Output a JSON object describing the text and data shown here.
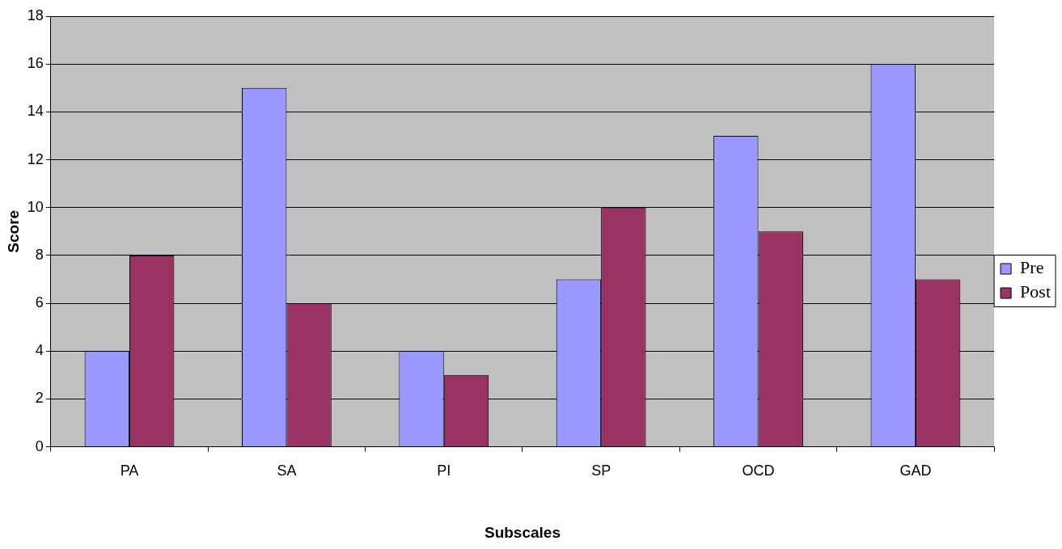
{
  "chart_data": {
    "type": "bar",
    "xlabel": "Subscales",
    "ylabel": "Score",
    "categories": [
      "PA",
      "SA",
      "PI",
      "SP",
      "OCD",
      "GAD"
    ],
    "series": [
      {
        "name": "Pre",
        "color": "#9999ff",
        "values": [
          4,
          15,
          4,
          7,
          13,
          16
        ]
      },
      {
        "name": "Post",
        "color": "#993366",
        "values": [
          8,
          6,
          3,
          10,
          9,
          7
        ]
      }
    ],
    "ylim": [
      0,
      18
    ],
    "yticks": [
      0,
      2,
      4,
      6,
      8,
      10,
      12,
      14,
      16,
      18
    ],
    "grid": "y",
    "legend": "right"
  }
}
